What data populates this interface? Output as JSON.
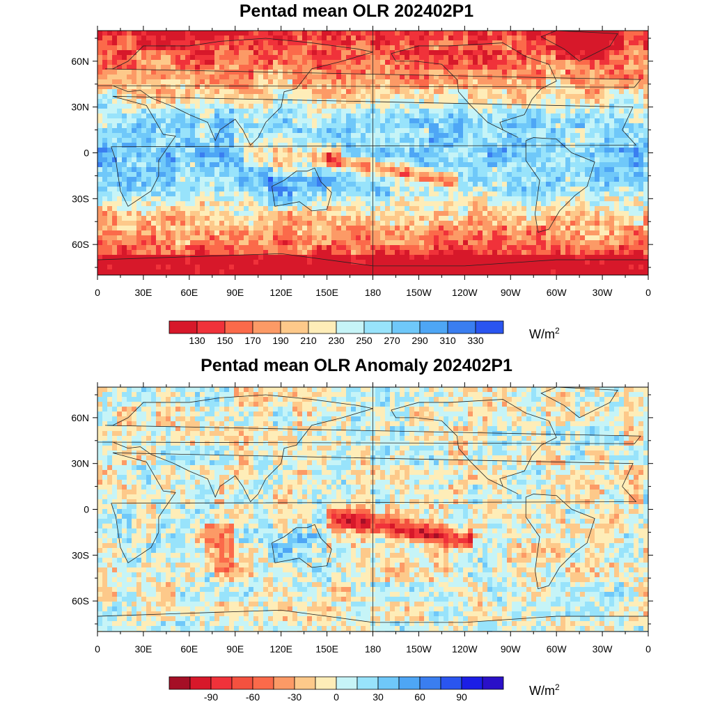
{
  "panels": [
    {
      "title": "Pentad mean OLR 202402P1",
      "units_base": "W/m",
      "units_exp": "2",
      "colorbar": {
        "colors": [
          "#d7182a",
          "#f0323a",
          "#fb6a4a",
          "#fc9a66",
          "#fdc98a",
          "#feedb8",
          "#c6f4f7",
          "#98e3fb",
          "#6fc8f9",
          "#4ea6f5",
          "#3a7ef0",
          "#2a55f0"
        ],
        "labels": [
          "130",
          "150",
          "170",
          "190",
          "210",
          "230",
          "250",
          "270",
          "290",
          "310",
          "330"
        ]
      }
    },
    {
      "title": "Pentad mean OLR Anomaly 202402P1",
      "units_base": "W/m",
      "units_exp": "2",
      "colorbar": {
        "colors": [
          "#a50f26",
          "#d7182a",
          "#f0323a",
          "#f4513f",
          "#fb6a4a",
          "#fc9a66",
          "#fdc98a",
          "#feedb8",
          "#c6f4f7",
          "#98e3fb",
          "#6fc8f9",
          "#4ea6f5",
          "#3a7ef0",
          "#2a55f0",
          "#1b1ee6",
          "#2a10c8"
        ],
        "labels": [
          "-90",
          "-60",
          "-30",
          "0",
          "30",
          "60",
          "90"
        ]
      }
    }
  ],
  "axes": {
    "lat_labels": [
      "60N",
      "30N",
      "0",
      "30S",
      "60S"
    ],
    "lon_labels": [
      "0",
      "30E",
      "60E",
      "90E",
      "120E",
      "150E",
      "180",
      "150W",
      "120W",
      "90W",
      "60W",
      "30W",
      "0"
    ]
  }
}
